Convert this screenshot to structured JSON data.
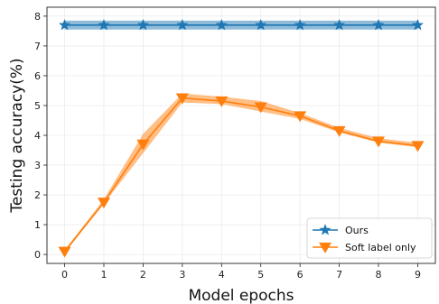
{
  "chart_data": {
    "type": "line",
    "x": [
      0,
      1,
      2,
      3,
      4,
      5,
      6,
      7,
      8,
      9
    ],
    "xlabel": "Model epochs",
    "ylabel": "Testing accuracy(%)",
    "xlim": [
      -0.45,
      9.45
    ],
    "ylim": [
      -0.3,
      8.3
    ],
    "xticks": [
      0,
      1,
      2,
      3,
      4,
      5,
      6,
      7,
      8,
      9
    ],
    "yticks": [
      0,
      1,
      2,
      3,
      4,
      5,
      6,
      7,
      8
    ],
    "grid": true,
    "legend_position": "lower-right",
    "series": [
      {
        "name": "Ours",
        "color": "#1f77b4",
        "marker": "star",
        "values": [
          7.7,
          7.7,
          7.7,
          7.7,
          7.7,
          7.7,
          7.7,
          7.7,
          7.7,
          7.7
        ],
        "band_low": [
          7.55,
          7.55,
          7.55,
          7.55,
          7.55,
          7.55,
          7.55,
          7.55,
          7.55,
          7.55
        ],
        "band_high": [
          7.85,
          7.85,
          7.85,
          7.85,
          7.85,
          7.85,
          7.85,
          7.85,
          7.85,
          7.85
        ]
      },
      {
        "name": "Soft label only",
        "color": "#ff7f0e",
        "marker": "triangle-down",
        "values": [
          0.1,
          1.75,
          3.7,
          5.25,
          5.15,
          4.95,
          4.65,
          4.15,
          3.8,
          3.65
        ],
        "band_low": [
          0.05,
          1.7,
          3.4,
          5.1,
          5.05,
          4.8,
          4.55,
          4.1,
          3.75,
          3.6
        ],
        "band_high": [
          0.15,
          1.85,
          4.05,
          5.4,
          5.3,
          5.15,
          4.75,
          4.25,
          3.9,
          3.75
        ]
      }
    ]
  }
}
